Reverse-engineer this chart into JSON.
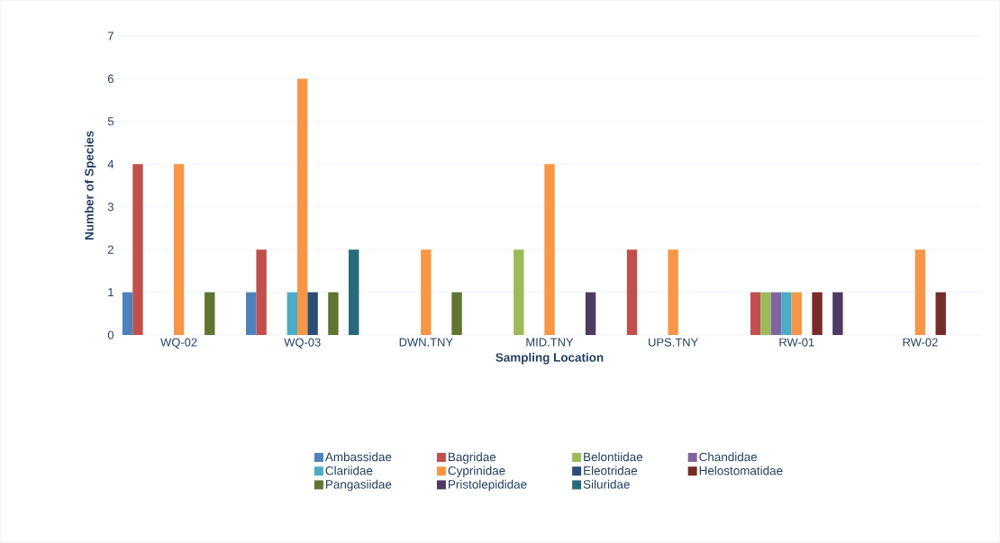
{
  "chart_data": {
    "type": "bar",
    "xlabel": "Sampling Location",
    "ylabel": "Number of Species",
    "categories": [
      "WQ-02",
      "WQ-03",
      "DWN.TNY",
      "MID.TNY",
      "UPS.TNY",
      "RW-01",
      "RW-02"
    ],
    "series": [
      {
        "name": "Ambassidae",
        "color": "#4f81bd",
        "values": [
          1,
          1,
          0,
          0,
          0,
          0,
          0
        ]
      },
      {
        "name": "Bagridae",
        "color": "#c0504d",
        "values": [
          4,
          2,
          0,
          0,
          2,
          1,
          0
        ]
      },
      {
        "name": "Belontiidae",
        "color": "#9bbb59",
        "values": [
          0,
          0,
          0,
          2,
          0,
          1,
          0
        ]
      },
      {
        "name": "Chandidae",
        "color": "#8064a2",
        "values": [
          0,
          0,
          0,
          0,
          0,
          1,
          0
        ]
      },
      {
        "name": "Clariidae",
        "color": "#4bacc6",
        "values": [
          0,
          1,
          0,
          0,
          0,
          1,
          0
        ]
      },
      {
        "name": "Cyprinidae",
        "color": "#f79646",
        "values": [
          4,
          6,
          2,
          4,
          2,
          1,
          2
        ]
      },
      {
        "name": "Eleotridae",
        "color": "#2c4d75",
        "values": [
          0,
          1,
          0,
          0,
          0,
          0,
          0
        ]
      },
      {
        "name": "Helostomatidae",
        "color": "#772c2a",
        "values": [
          0,
          0,
          0,
          0,
          0,
          1,
          1
        ]
      },
      {
        "name": "Pangasiidae",
        "color": "#5f7530",
        "values": [
          1,
          1,
          1,
          0,
          0,
          0,
          0
        ]
      },
      {
        "name": "Pristolepididae",
        "color": "#4d3b62",
        "values": [
          0,
          0,
          0,
          1,
          0,
          1,
          0
        ]
      },
      {
        "name": "Siluridae",
        "color": "#276a7c",
        "values": [
          0,
          2,
          0,
          0,
          0,
          0,
          0
        ]
      }
    ],
    "ylim": [
      0,
      7
    ],
    "yticks": [
      0,
      1,
      2,
      3,
      4,
      5,
      6,
      7
    ],
    "grid": "y",
    "legend": "bottom"
  }
}
